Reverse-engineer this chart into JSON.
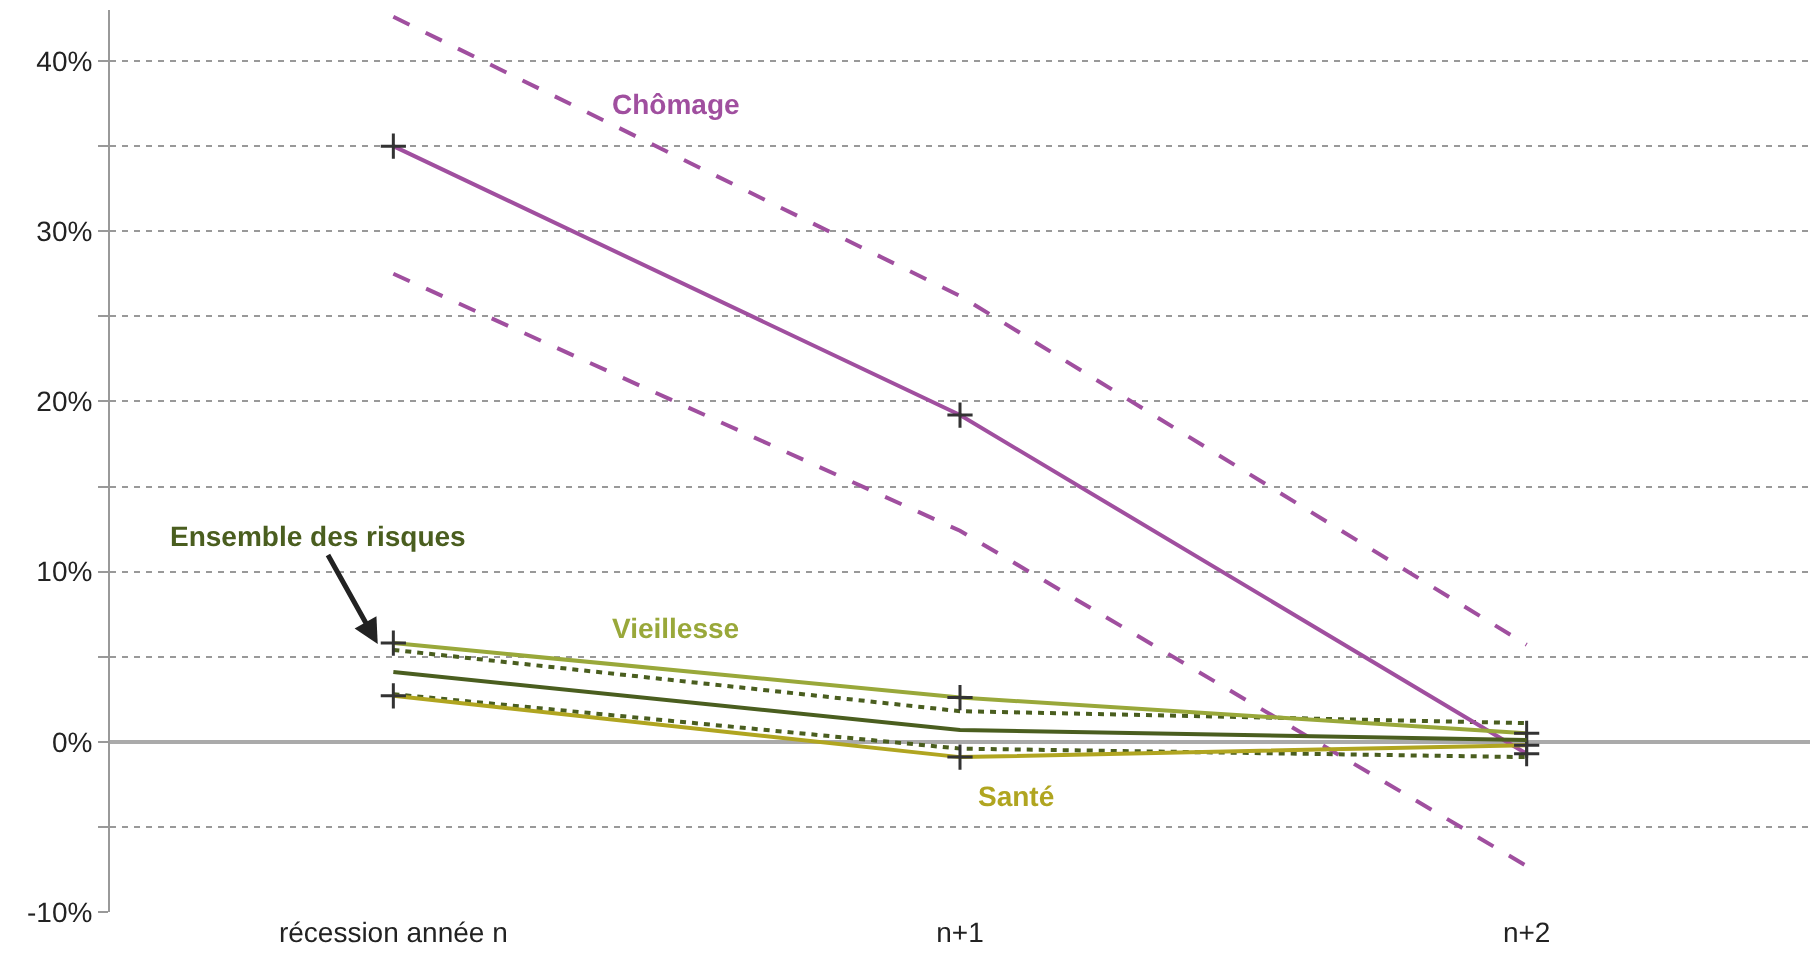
{
  "chart_data": {
    "type": "line",
    "categories": [
      "récession année n",
      "n+1",
      "n+2"
    ],
    "series": [
      {
        "color": "#a04f9f",
        "values": [
          42.6,
          26.2,
          5.7
        ],
        "line_style": "dashed"
      },
      {
        "color": "#a04f9f",
        "values": [
          27.5,
          12.4,
          -7.3
        ],
        "line_style": "dashed"
      },
      {
        "color": "#4a5e1f",
        "values": [
          5.4,
          1.8,
          1.1
        ],
        "line_style": "dotted"
      },
      {
        "color": "#4a5e1f",
        "values": [
          2.8,
          -0.4,
          -0.9
        ],
        "line_style": "dotted"
      },
      {
        "name": "Chômage",
        "color": "#a04f9f",
        "values": [
          35,
          19.2,
          -0.7
        ],
        "marker": "cross"
      },
      {
        "name": "Vieillesse",
        "color": "#99a83a",
        "values": [
          5.8,
          2.6,
          0.5
        ],
        "marker": "cross"
      },
      {
        "name": "Santé",
        "color": "#b0a520",
        "values": [
          2.7,
          -0.9,
          -0.2
        ],
        "marker": "cross"
      },
      {
        "color": "#4a5e1f",
        "values": [
          4.1,
          0.7,
          0.1
        ]
      }
    ],
    "annotations": [
      {
        "text": "Ensemble des risques",
        "x": "récession année n",
        "y": 4.1
      }
    ],
    "ylim": [
      -10,
      43
    ],
    "yticks": [
      {
        "value": -10,
        "label": "-10%"
      },
      {
        "value": -5,
        "label": null
      },
      {
        "value": 0,
        "label": "0%"
      },
      {
        "value": 5,
        "label": null
      },
      {
        "value": 10,
        "label": "10%"
      },
      {
        "value": 15,
        "label": null
      },
      {
        "value": 20,
        "label": "20%"
      },
      {
        "value": 25,
        "label": null
      },
      {
        "value": 30,
        "label": "30%"
      },
      {
        "value": 35,
        "label": null
      },
      {
        "value": 40,
        "label": "40%"
      }
    ],
    "grid": "y",
    "legend": false
  }
}
